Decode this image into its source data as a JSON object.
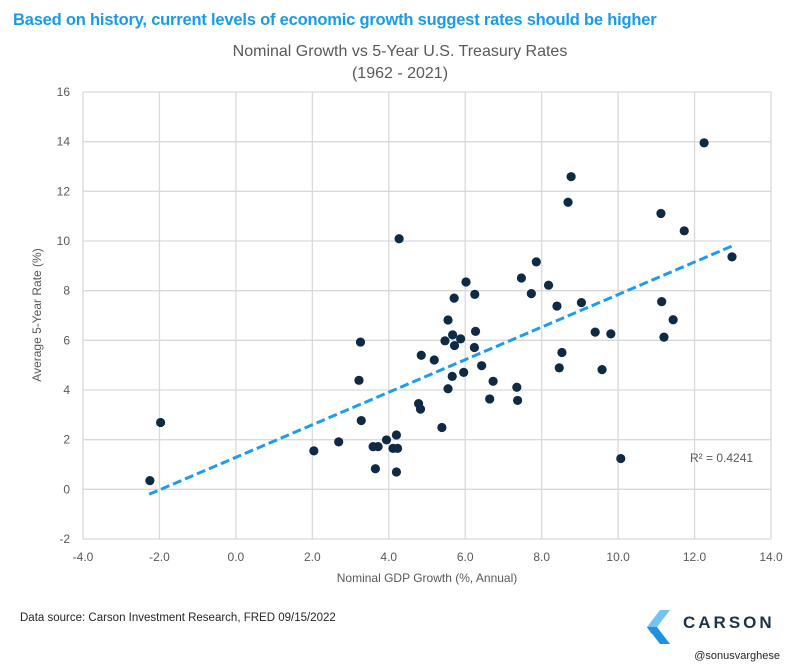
{
  "headline": "Based on history, current levels of economic growth suggest rates should be higher",
  "colors": {
    "headline": "#1a9be8",
    "point": "#0f2a44",
    "trendline": "#1f9bf0",
    "grid": "#d9d9d9",
    "logo_light": "#6fc3f5",
    "logo_dark": "#17334f",
    "logo_mid": "#1e90e6"
  },
  "footer": {
    "source": "Data source: Carson Investment Research, FRED   09/15/2022",
    "logo_text": "CARSON",
    "handle": "@sonusvarghese"
  },
  "chart_data": {
    "type": "scatter",
    "title": "Nominal Growth vs 5-Year U.S. Treasury Rates",
    "subtitle": "(1962 - 2021)",
    "xlabel": "Nominal GDP Growth (%, Annual)",
    "ylabel": "Average 5-Year Rate (%)",
    "xlim": [
      -4,
      14
    ],
    "ylim": [
      -2,
      16
    ],
    "x_ticks": [
      "-4.0",
      "-2.0",
      "0.0",
      "2.0",
      "4.0",
      "6.0",
      "8.0",
      "10.0",
      "12.0",
      "14.0"
    ],
    "y_ticks": [
      "-2",
      "0",
      "2",
      "4",
      "6",
      "8",
      "10",
      "12",
      "14",
      "16"
    ],
    "x_tick_values": [
      -4,
      -2,
      0,
      2,
      4,
      6,
      8,
      10,
      12,
      14
    ],
    "y_tick_values": [
      -2,
      0,
      2,
      4,
      6,
      8,
      10,
      12,
      14,
      16
    ],
    "grid": true,
    "points": [
      {
        "x": -2.25,
        "y": 0.35
      },
      {
        "x": -1.97,
        "y": 2.69
      },
      {
        "x": 2.04,
        "y": 1.55
      },
      {
        "x": 2.69,
        "y": 1.91
      },
      {
        "x": 3.28,
        "y": 2.77
      },
      {
        "x": 3.22,
        "y": 4.39
      },
      {
        "x": 3.26,
        "y": 5.93
      },
      {
        "x": 3.59,
        "y": 1.72
      },
      {
        "x": 3.72,
        "y": 1.72
      },
      {
        "x": 3.65,
        "y": 0.83
      },
      {
        "x": 3.94,
        "y": 1.99
      },
      {
        "x": 4.2,
        "y": 2.19
      },
      {
        "x": 4.11,
        "y": 1.65
      },
      {
        "x": 4.23,
        "y": 1.65
      },
      {
        "x": 4.2,
        "y": 0.7
      },
      {
        "x": 4.27,
        "y": 10.09
      },
      {
        "x": 4.78,
        "y": 3.45
      },
      {
        "x": 4.83,
        "y": 3.23
      },
      {
        "x": 4.85,
        "y": 5.4
      },
      {
        "x": 5.19,
        "y": 5.21
      },
      {
        "x": 5.39,
        "y": 2.49
      },
      {
        "x": 5.47,
        "y": 5.98
      },
      {
        "x": 5.55,
        "y": 6.82
      },
      {
        "x": 5.55,
        "y": 4.05
      },
      {
        "x": 5.66,
        "y": 4.55
      },
      {
        "x": 5.67,
        "y": 6.22
      },
      {
        "x": 5.71,
        "y": 7.7
      },
      {
        "x": 5.72,
        "y": 5.79
      },
      {
        "x": 5.88,
        "y": 6.06
      },
      {
        "x": 5.96,
        "y": 4.71
      },
      {
        "x": 6.02,
        "y": 8.35
      },
      {
        "x": 6.24,
        "y": 5.71
      },
      {
        "x": 6.25,
        "y": 7.85
      },
      {
        "x": 6.27,
        "y": 6.36
      },
      {
        "x": 6.43,
        "y": 4.98
      },
      {
        "x": 6.64,
        "y": 3.64
      },
      {
        "x": 6.73,
        "y": 4.35
      },
      {
        "x": 7.35,
        "y": 4.11
      },
      {
        "x": 7.37,
        "y": 3.58
      },
      {
        "x": 7.47,
        "y": 8.51
      },
      {
        "x": 7.73,
        "y": 7.88
      },
      {
        "x": 7.86,
        "y": 9.16
      },
      {
        "x": 8.18,
        "y": 8.22
      },
      {
        "x": 8.4,
        "y": 7.38
      },
      {
        "x": 8.46,
        "y": 4.89
      },
      {
        "x": 8.53,
        "y": 5.51
      },
      {
        "x": 8.69,
        "y": 11.56
      },
      {
        "x": 8.77,
        "y": 12.59
      },
      {
        "x": 9.04,
        "y": 7.52
      },
      {
        "x": 9.4,
        "y": 6.33
      },
      {
        "x": 9.58,
        "y": 4.82
      },
      {
        "x": 9.81,
        "y": 6.26
      },
      {
        "x": 10.07,
        "y": 1.24
      },
      {
        "x": 11.12,
        "y": 11.11
      },
      {
        "x": 11.14,
        "y": 7.56
      },
      {
        "x": 11.2,
        "y": 6.13
      },
      {
        "x": 11.44,
        "y": 6.83
      },
      {
        "x": 11.73,
        "y": 10.41
      },
      {
        "x": 12.25,
        "y": 13.95
      },
      {
        "x": 12.98,
        "y": 9.36
      }
    ],
    "trendline": {
      "type": "linear",
      "style": "dashed",
      "start": {
        "x": -2.27,
        "y": -0.2
      },
      "end": {
        "x": 12.97,
        "y": 9.79
      },
      "label": "R² = 0.4241"
    },
    "legend": "none"
  }
}
